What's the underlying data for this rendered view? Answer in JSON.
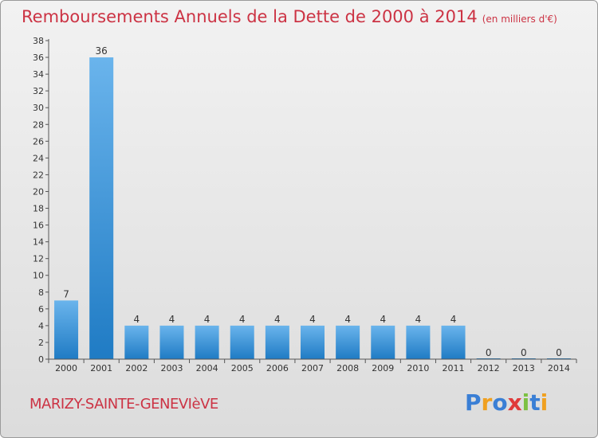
{
  "header": {
    "title": "Remboursements Annuels de la Dette de 2000 à 2014",
    "subtitle": "(en milliers d'€)"
  },
  "footer": {
    "commune": "MARIZY-SAINTE-GENEVIèVE",
    "logo_text": "Proxiti",
    "logo_letters": [
      {
        "char": "P",
        "color": "#3a7fd5"
      },
      {
        "char": "r",
        "color": "#f0a020"
      },
      {
        "char": "o",
        "color": "#3a7fd5"
      },
      {
        "char": "x",
        "color": "#e03a3a"
      },
      {
        "char": "i",
        "color": "#7cc142"
      },
      {
        "char": "t",
        "color": "#3a7fd5"
      },
      {
        "char": "i",
        "color": "#f0a020"
      }
    ]
  },
  "colors": {
    "title": "#cc3344",
    "bar_light": "#6ab4ec",
    "bar_dark": "#1f7bc4",
    "axis": "#555555",
    "grid": "#c8c8c8"
  },
  "chart_data": {
    "type": "bar",
    "title": "Remboursements Annuels de la Dette de 2000 à 2014",
    "subtitle": "(en milliers d'€)",
    "xlabel": "",
    "ylabel": "",
    "categories": [
      "2000",
      "2001",
      "2002",
      "2003",
      "2004",
      "2005",
      "2006",
      "2007",
      "2008",
      "2009",
      "2010",
      "2011",
      "2012",
      "2013",
      "2014"
    ],
    "values": [
      7,
      36,
      4,
      4,
      4,
      4,
      4,
      4,
      4,
      4,
      4,
      4,
      0,
      0,
      0
    ],
    "data_labels": [
      "7",
      "36",
      "4",
      "4",
      "4",
      "4",
      "4",
      "4",
      "4",
      "4",
      "4",
      "4",
      "0",
      "0",
      "0"
    ],
    "ylim": [
      0,
      38
    ],
    "yticks": [
      0,
      2,
      4,
      6,
      8,
      10,
      12,
      14,
      16,
      18,
      20,
      22,
      24,
      26,
      28,
      30,
      32,
      34,
      36,
      38
    ],
    "grid": false,
    "legend": "none"
  }
}
